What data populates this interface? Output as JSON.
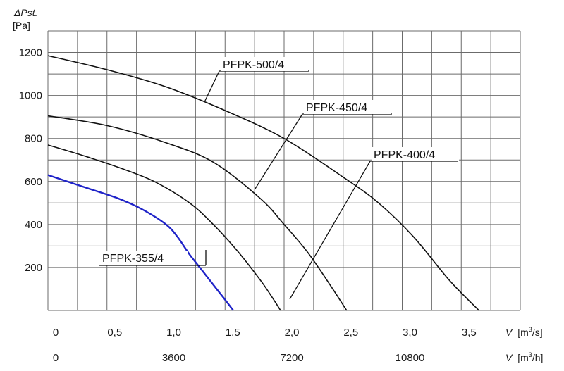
{
  "chart_data": {
    "type": "line",
    "y_axis": {
      "label_symbol": "ΔPst.",
      "unit": "[Pa]",
      "ticks": [
        200,
        400,
        600,
        800,
        1000,
        1200
      ],
      "range": [
        0,
        1300
      ]
    },
    "x_axis_primary": {
      "symbol": "V",
      "unit_prefix": "[m",
      "unit_sup": "3",
      "unit_suffix": "/s]",
      "ticks": [
        "0",
        "0,5",
        "1,0",
        "1,5",
        "2,0",
        "2,5",
        "3,0",
        "3,5"
      ],
      "tick_values": [
        0,
        0.5,
        1.0,
        1.5,
        2.0,
        2.5,
        3.0,
        3.5
      ],
      "range": [
        0,
        4.0
      ]
    },
    "x_axis_secondary": {
      "symbol": "V",
      "unit_prefix": "[m",
      "unit_sup": "3",
      "unit_suffix": "/h]",
      "ticks": [
        "0",
        "3600",
        "7200",
        "10800"
      ],
      "tick_values": [
        0,
        1.0,
        2.0,
        3.0
      ]
    },
    "grid": true,
    "series": [
      {
        "name": "PFPK-355/4",
        "color": "#1f23c8",
        "x": [
          0,
          0.3,
          0.6,
          0.8,
          1.0,
          1.1,
          1.2,
          1.3,
          1.4,
          1.5,
          1.57
        ],
        "y": [
          630,
          575,
          520,
          470,
          400,
          340,
          260,
          190,
          120,
          50,
          0
        ]
      },
      {
        "name": "PFPK-400/4",
        "color": "#111111",
        "x": [
          0,
          0.3,
          0.6,
          0.9,
          1.2,
          1.4,
          1.6,
          1.8,
          1.9,
          1.97
        ],
        "y": [
          770,
          720,
          665,
          600,
          500,
          400,
          280,
          140,
          60,
          0
        ]
      },
      {
        "name": "PFPK-450/4",
        "color": "#111111",
        "x": [
          0,
          0.5,
          1.0,
          1.4,
          1.8,
          2.0,
          2.2,
          2.4,
          2.53
        ],
        "y": [
          905,
          860,
          780,
          690,
          520,
          400,
          270,
          110,
          0
        ]
      },
      {
        "name": "PFPK-500/4",
        "color": "#111111",
        "x": [
          0,
          0.5,
          1.0,
          1.5,
          2.0,
          2.5,
          2.8,
          3.1,
          3.4,
          3.65
        ],
        "y": [
          1185,
          1120,
          1040,
          930,
          800,
          620,
          500,
          340,
          140,
          0
        ]
      }
    ]
  }
}
